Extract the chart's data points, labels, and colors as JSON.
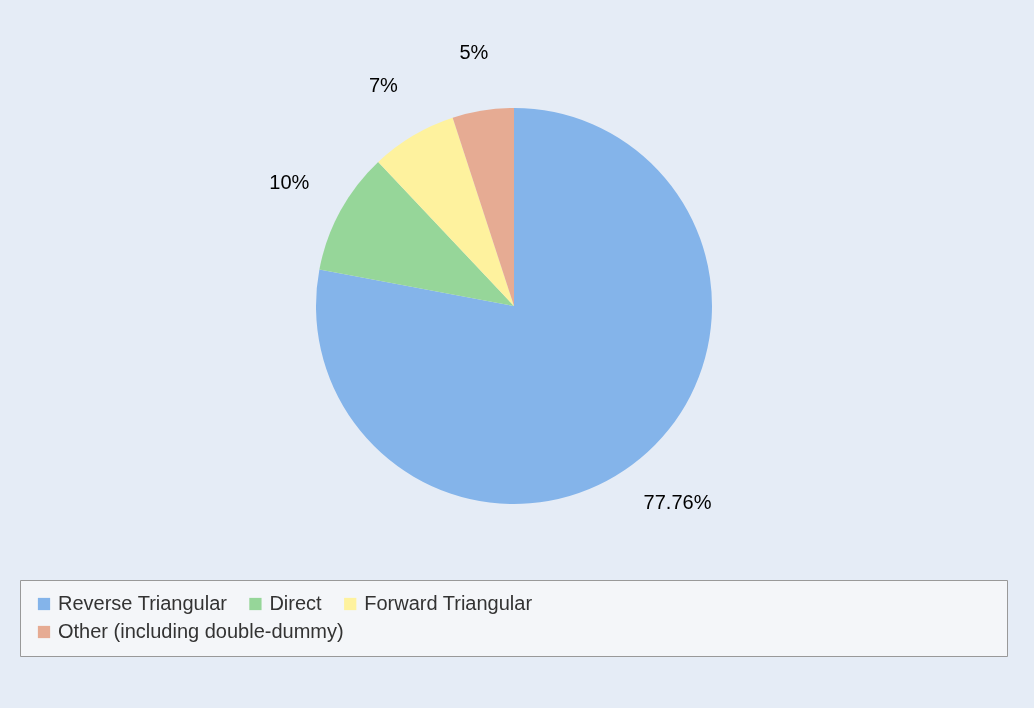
{
  "chart_data": {
    "type": "pie",
    "categories": [
      "Reverse Triangular",
      "Direct",
      "Forward Triangular",
      "Other (including double-dummy)"
    ],
    "values": [
      77.76,
      10,
      7,
      5
    ],
    "colors": [
      "#84b4ea",
      "#96d699",
      "#fef29e",
      "#e6ab93"
    ],
    "value_labels": [
      "77.76%",
      "10%",
      "7%",
      "5%"
    ],
    "legend": "bottom"
  }
}
